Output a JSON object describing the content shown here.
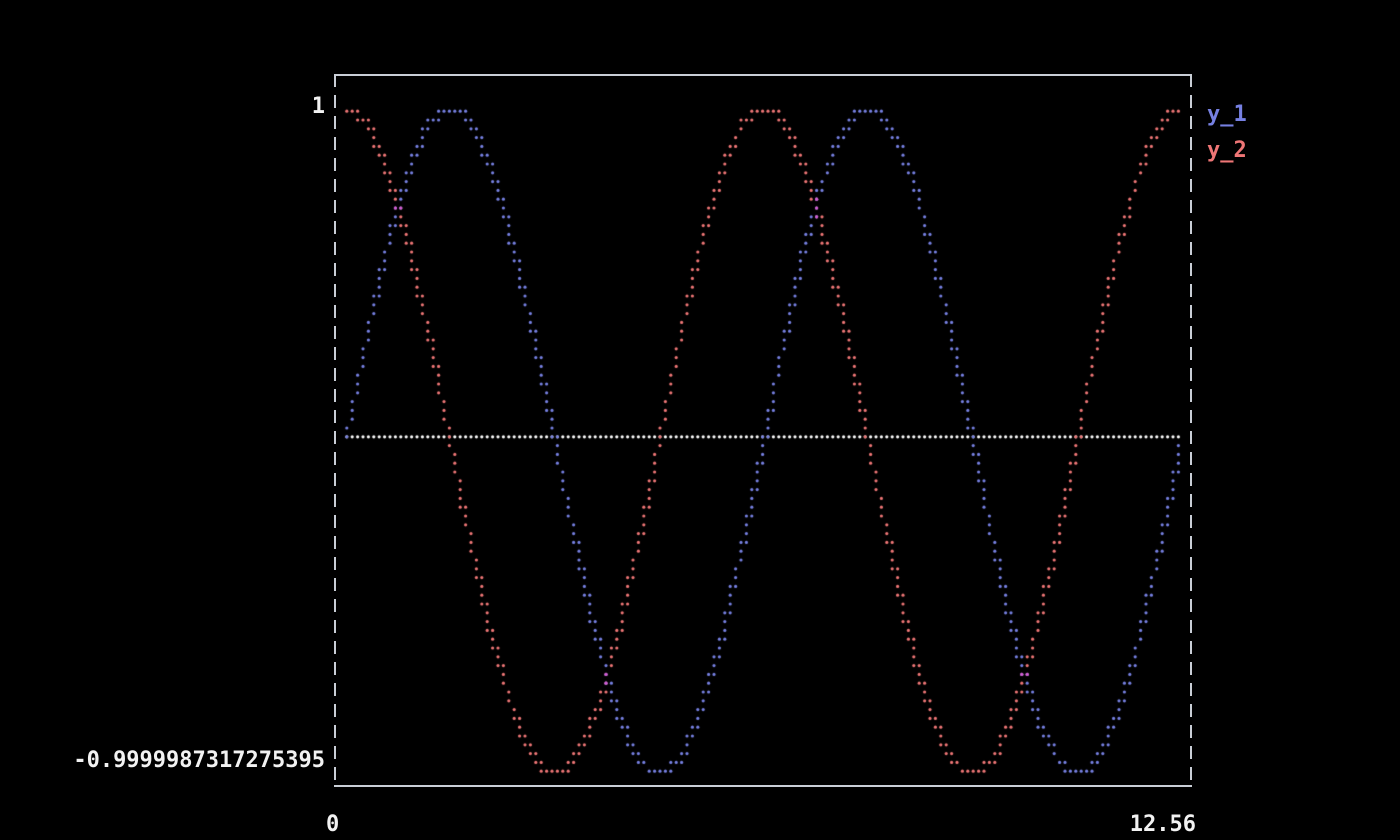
{
  "chart_data": {
    "type": "scatter",
    "marker": "dot",
    "x_range": [
      0,
      12.56
    ],
    "ylim": [
      -0.9999987317275395,
      1
    ],
    "samples": 2200,
    "series": [
      {
        "name": "y_1",
        "function": "sin",
        "amplitude": 1,
        "color": "#7680e2"
      },
      {
        "name": "y_2",
        "function": "cos",
        "amplitude": 1,
        "color": "#ef7676"
      }
    ],
    "zero_line": {
      "y": 0,
      "color": "#ffffff"
    },
    "overlap_color": "#d45bd4",
    "tick_labels": {
      "y_max": "1",
      "y_min": "-0.9999987317275395",
      "x_min": "0",
      "x_max": "12.56"
    },
    "legend_position": "outside-top-right",
    "grid": false,
    "theme": {
      "background": "#000000",
      "frame_color": "#c9ced6",
      "label_color": "#f2f2f2"
    }
  }
}
